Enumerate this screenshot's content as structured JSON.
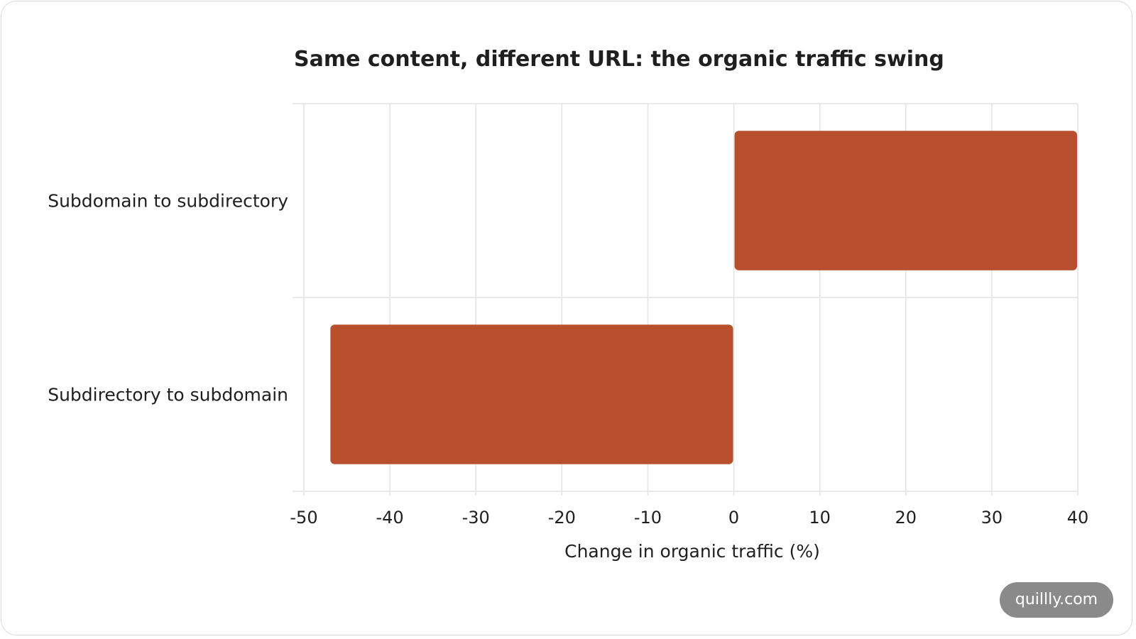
{
  "chart_data": {
    "type": "bar",
    "orientation": "horizontal",
    "title": "Same content, different URL: the organic traffic swing",
    "xlabel": "Change in organic traffic (%)",
    "ylabel": "",
    "categories": [
      "Subdomain to subdirectory",
      "Subdirectory to subdomain"
    ],
    "values": [
      40,
      -47
    ],
    "xlim": [
      -50,
      40
    ],
    "xticks": [
      -50,
      -40,
      -30,
      -20,
      -10,
      0,
      10,
      20,
      30,
      40
    ],
    "xtick_labels": [
      "-50",
      "-40",
      "-30",
      "-20",
      "-10",
      "0",
      "10",
      "20",
      "30",
      "40"
    ],
    "grid": true,
    "bar_color": "#b8502e"
  },
  "badge": {
    "text": "quillly.com"
  }
}
